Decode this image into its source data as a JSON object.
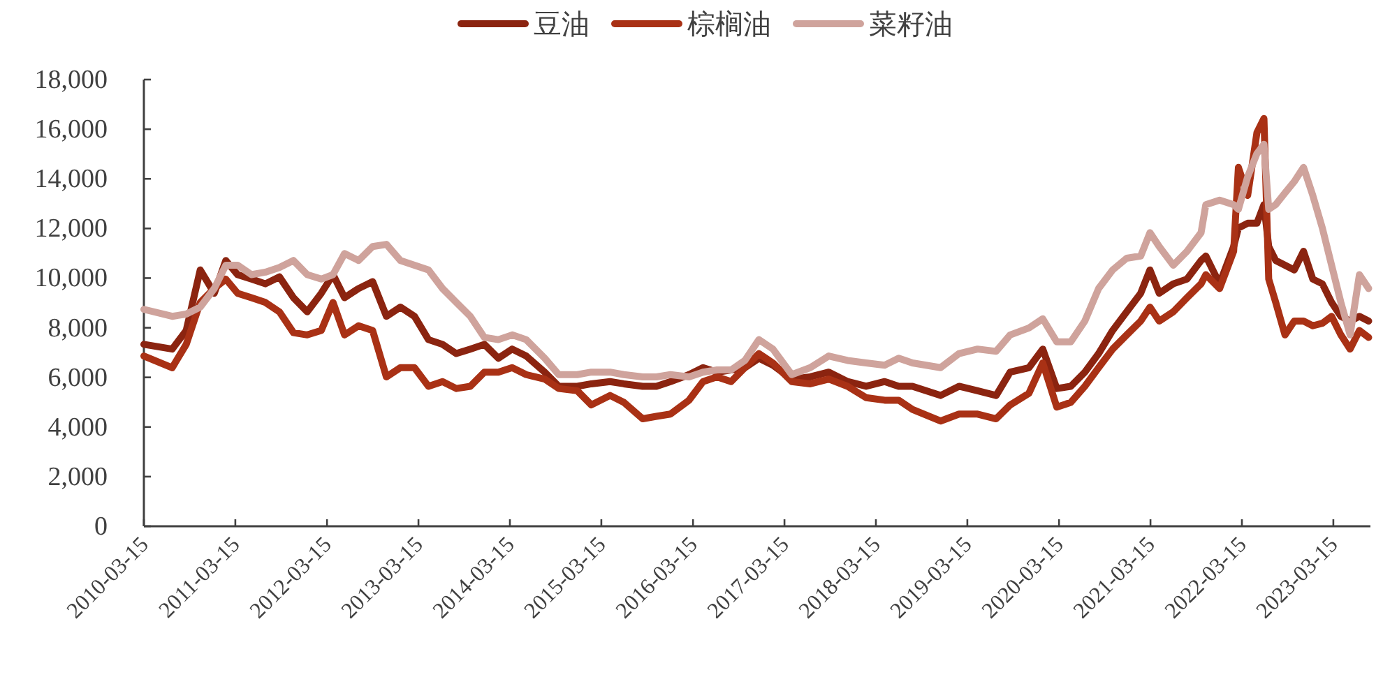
{
  "chart_data": {
    "type": "line",
    "legend": "top",
    "x": [
      "2010-03-15",
      "2010-07-06",
      "2010-08-31",
      "2010-10-26",
      "2010-12-21",
      "2011-02-05",
      "2011-03-24",
      "2011-05-18",
      "2011-07-13",
      "2011-09-07",
      "2011-11-02",
      "2011-12-27",
      "2012-02-21",
      "2012-04-08",
      "2012-05-24",
      "2012-07-19",
      "2012-09-13",
      "2012-11-07",
      "2013-01-02",
      "2013-02-27",
      "2013-04-24",
      "2013-06-19",
      "2013-08-13",
      "2013-10-08",
      "2013-12-03",
      "2014-01-28",
      "2014-03-24",
      "2014-05-19",
      "2014-08-01",
      "2014-09-26",
      "2014-12-09",
      "2015-02-03",
      "2015-04-19",
      "2015-06-13",
      "2015-08-27",
      "2015-10-21",
      "2015-12-16",
      "2016-02-28",
      "2016-04-24",
      "2016-06-19",
      "2016-08-14",
      "2016-10-08",
      "2016-12-03",
      "2017-01-28",
      "2017-04-13",
      "2017-06-26",
      "2017-09-08",
      "2017-11-22",
      "2018-02-04",
      "2018-04-19",
      "2018-06-14",
      "2018-08-08",
      "2018-11-28",
      "2019-02-10",
      "2019-04-25",
      "2019-07-08",
      "2019-09-02",
      "2019-11-16",
      "2020-01-10",
      "2020-03-06",
      "2020-05-01",
      "2020-06-26",
      "2020-08-20",
      "2020-10-15",
      "2020-12-10",
      "2021-02-04",
      "2021-03-13",
      "2021-04-19",
      "2021-06-14",
      "2021-08-08",
      "2021-10-03",
      "2021-10-22",
      "2021-12-16",
      "2022-02-10",
      "2022-03-01",
      "2022-04-07",
      "2022-05-14",
      "2022-06-11",
      "2022-06-30",
      "2022-07-28",
      "2022-09-03",
      "2022-10-10",
      "2022-11-16",
      "2022-12-23",
      "2023-01-30",
      "2023-03-08",
      "2023-04-14",
      "2023-05-21",
      "2023-06-27",
      "2023-08-03"
    ],
    "series": [
      {
        "name": "豆油",
        "color": "#8b2410",
        "values": [
          7330,
          7140,
          7890,
          10330,
          9390,
          10710,
          10140,
          9960,
          9770,
          10050,
          9210,
          8640,
          9390,
          10140,
          9210,
          9580,
          9860,
          8460,
          8830,
          8460,
          7520,
          7330,
          6960,
          7140,
          7330,
          6770,
          7140,
          6860,
          6210,
          5640,
          5640,
          5740,
          5830,
          5740,
          5640,
          5640,
          5830,
          6110,
          6390,
          6210,
          6300,
          6390,
          6770,
          6490,
          5930,
          6020,
          6210,
          5830,
          5640,
          5830,
          5640,
          5640,
          5270,
          5640,
          5460,
          5270,
          6210,
          6390,
          7140,
          5550,
          5640,
          6210,
          6960,
          7890,
          8640,
          9390,
          10330,
          9390,
          9770,
          9960,
          10710,
          10890,
          9770,
          11270,
          12020,
          12210,
          12210,
          12960,
          11270,
          10710,
          10520,
          10330,
          11080,
          9960,
          9770,
          9020,
          8460,
          8270,
          8460,
          8270
        ]
      },
      {
        "name": "棕榈油",
        "color": "#a93115",
        "values": [
          6860,
          6390,
          7330,
          9020,
          9580,
          9960,
          9390,
          9210,
          9020,
          8640,
          7800,
          7710,
          7890,
          9020,
          7710,
          8080,
          7890,
          6020,
          6390,
          6390,
          5640,
          5830,
          5550,
          5640,
          6210,
          6210,
          6390,
          6110,
          5930,
          5550,
          5460,
          4890,
          5270,
          4990,
          4330,
          4430,
          4520,
          5080,
          5830,
          6020,
          5830,
          6390,
          6960,
          6580,
          5830,
          5740,
          5930,
          5640,
          5180,
          5080,
          5080,
          4710,
          4240,
          4520,
          4520,
          4330,
          4890,
          5360,
          6580,
          4800,
          4990,
          5640,
          6390,
          7140,
          7710,
          8270,
          8830,
          8270,
          8640,
          9210,
          9770,
          10140,
          9580,
          11080,
          14460,
          13330,
          15860,
          16430,
          9960,
          9020,
          7710,
          8270,
          8270,
          8080,
          8180,
          8460,
          7710,
          7140,
          7890,
          7610
        ]
      },
      {
        "name": "菜籽油",
        "color": "#cfa39c",
        "values": [
          8740,
          8460,
          8550,
          8830,
          9580,
          10520,
          10520,
          10140,
          10240,
          10430,
          10710,
          10140,
          9960,
          10140,
          10990,
          10710,
          11270,
          11360,
          10710,
          10520,
          10330,
          9580,
          9020,
          8460,
          7610,
          7520,
          7710,
          7520,
          6770,
          6110,
          6110,
          6210,
          6210,
          6110,
          6020,
          6020,
          6110,
          6020,
          6210,
          6300,
          6300,
          6680,
          7520,
          7140,
          6110,
          6390,
          6860,
          6680,
          6580,
          6490,
          6770,
          6580,
          6390,
          6960,
          7140,
          7050,
          7710,
          7990,
          8360,
          7430,
          7430,
          8270,
          9580,
          10330,
          10800,
          10890,
          11830,
          11270,
          10520,
          11080,
          11830,
          12960,
          13140,
          12960,
          12770,
          14080,
          15020,
          15390,
          12770,
          12960,
          13430,
          13890,
          14460,
          13330,
          12020,
          10520,
          9020,
          7710,
          10140,
          9580
        ]
      }
    ],
    "xlim": [
      "2010-03-15",
      "2023-08-10"
    ],
    "xticks": [
      "2010-03-15",
      "2011-03-15",
      "2012-03-15",
      "2013-03-15",
      "2014-03-15",
      "2015-03-15",
      "2016-03-15",
      "2017-03-15",
      "2018-03-15",
      "2019-03-15",
      "2020-03-15",
      "2021-03-15",
      "2022-03-15",
      "2023-03-15"
    ],
    "ylim": [
      0,
      18000
    ],
    "yticks": [
      {
        "value": 0,
        "label": "0"
      },
      {
        "value": 2000,
        "label": "2,000"
      },
      {
        "value": 4000,
        "label": "4,000"
      },
      {
        "value": 6000,
        "label": "6,000"
      },
      {
        "value": 8000,
        "label": "8,000"
      },
      {
        "value": 10000,
        "label": "10,000"
      },
      {
        "value": 12000,
        "label": "12,000"
      },
      {
        "value": 14000,
        "label": "14,000"
      },
      {
        "value": 16000,
        "label": "16,000"
      },
      {
        "value": 18000,
        "label": "18,000"
      }
    ]
  }
}
